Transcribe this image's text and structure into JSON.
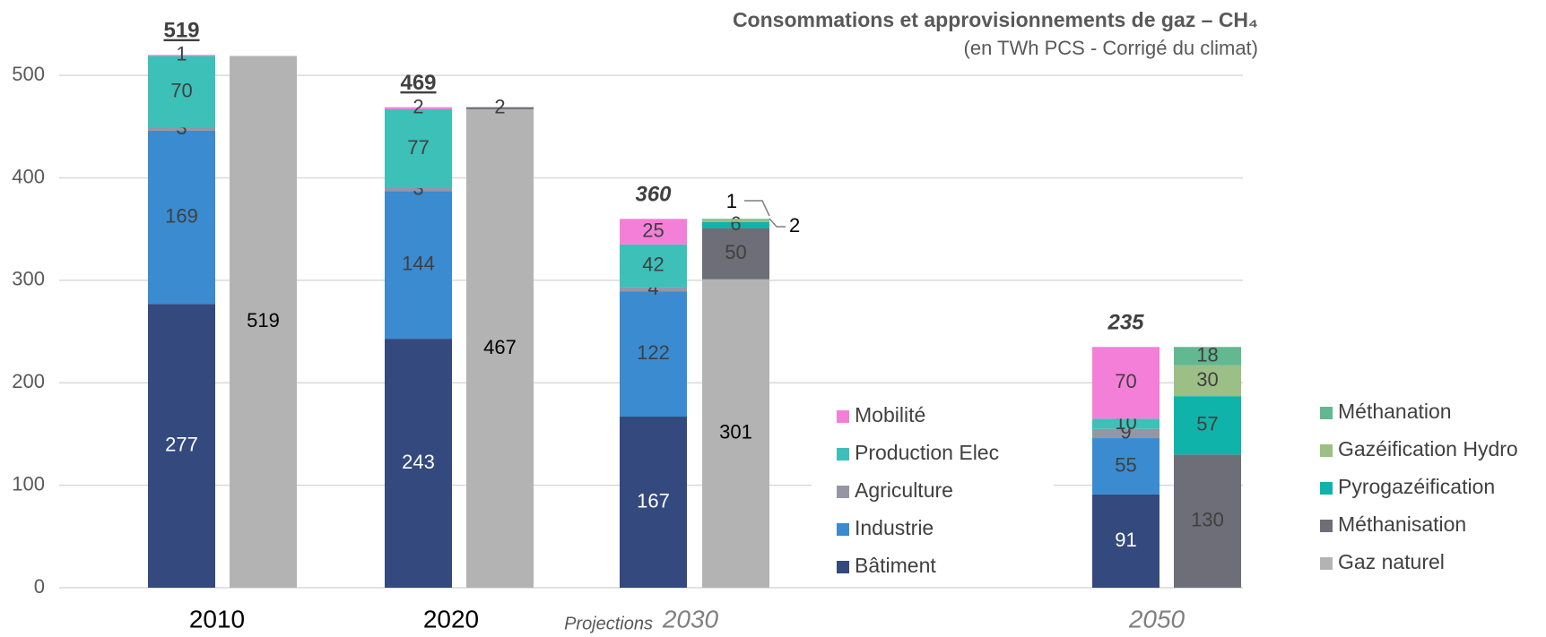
{
  "chart_data": {
    "type": "stacked_bar",
    "title": "Consommations et approvisionnements de gaz – CH₄",
    "subtitle": "(en TWh PCS - Corrigé du climat)",
    "annotation": "Projections",
    "categories": [
      "2010",
      "2020",
      "2030",
      "2050"
    ],
    "totals": [
      519,
      469,
      360,
      235
    ],
    "ylim": [
      0,
      550
    ],
    "yticks": [
      0,
      100,
      200,
      300,
      400,
      500
    ],
    "grid": true,
    "consumption_series": [
      {
        "name": "Bâtiment",
        "color": "#34497d",
        "values": [
          277,
          243,
          167,
          91
        ]
      },
      {
        "name": "Industrie",
        "color": "#3a8bd0",
        "values": [
          169,
          144,
          122,
          55
        ]
      },
      {
        "name": "Agriculture",
        "color": "#9496a6",
        "values": [
          3,
          3,
          4,
          9
        ]
      },
      {
        "name": "Production Elec",
        "color": "#3cc0b8",
        "values": [
          70,
          77,
          42,
          10
        ]
      },
      {
        "name": "Mobilité",
        "color": "#f47fd8",
        "values": [
          1,
          2,
          25,
          70
        ]
      }
    ],
    "supply_series": [
      {
        "name": "Gaz naturel",
        "color": "#b3b3b3",
        "values": [
          519,
          467,
          301,
          null
        ]
      },
      {
        "name": "Méthanisation",
        "color": "#6e6e78",
        "values": [
          null,
          2,
          50,
          130
        ]
      },
      {
        "name": "Pyrogazéification",
        "color": "#10b3aa",
        "values": [
          null,
          null,
          6,
          57
        ]
      },
      {
        "name": "Gazéification Hydro",
        "color": "#9bbf85",
        "values": [
          null,
          null,
          2,
          30
        ]
      },
      {
        "name": "Méthanation",
        "color": "#62b890",
        "values": [
          null,
          null,
          1,
          18
        ]
      }
    ]
  }
}
